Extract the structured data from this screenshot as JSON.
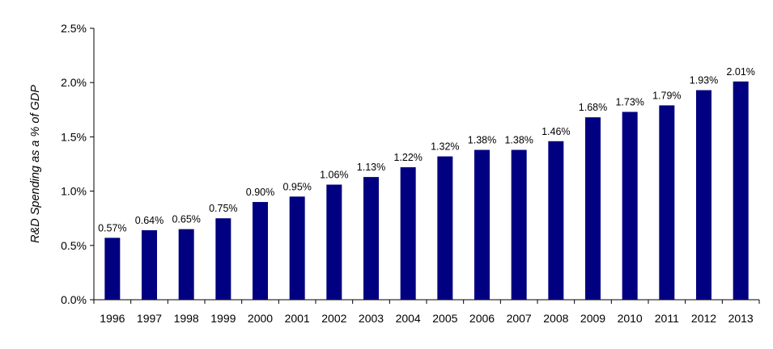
{
  "chart_data": {
    "type": "bar",
    "title": "",
    "xlabel": "",
    "ylabel": "R&D Spending as a % of GDP",
    "ylim": [
      0,
      2.5
    ],
    "yticks": [
      0.0,
      0.5,
      1.0,
      1.5,
      2.0,
      2.5
    ],
    "ytick_labels": [
      "0.0%",
      "0.5%",
      "1.0%",
      "1.5%",
      "2.0%",
      "2.5%"
    ],
    "grid": false,
    "legend": "none",
    "bar_color": "#000080",
    "categories": [
      "1996",
      "1997",
      "1998",
      "1999",
      "2000",
      "2001",
      "2002",
      "2003",
      "2004",
      "2005",
      "2006",
      "2007",
      "2008",
      "2009",
      "2010",
      "2011",
      "2012",
      "2013"
    ],
    "values": [
      0.57,
      0.64,
      0.65,
      0.75,
      0.9,
      0.95,
      1.06,
      1.13,
      1.22,
      1.32,
      1.38,
      1.38,
      1.46,
      1.68,
      1.73,
      1.79,
      1.93,
      2.01
    ],
    "data_labels": [
      "0.57%",
      "0.64%",
      "0.65%",
      "0.75%",
      "0.90%",
      "0.95%",
      "1.06%",
      "1.13%",
      "1.22%",
      "1.32%",
      "1.38%",
      "1.38%",
      "1.46%",
      "1.68%",
      "1.73%",
      "1.79%",
      "1.93%",
      "2.01%"
    ]
  }
}
